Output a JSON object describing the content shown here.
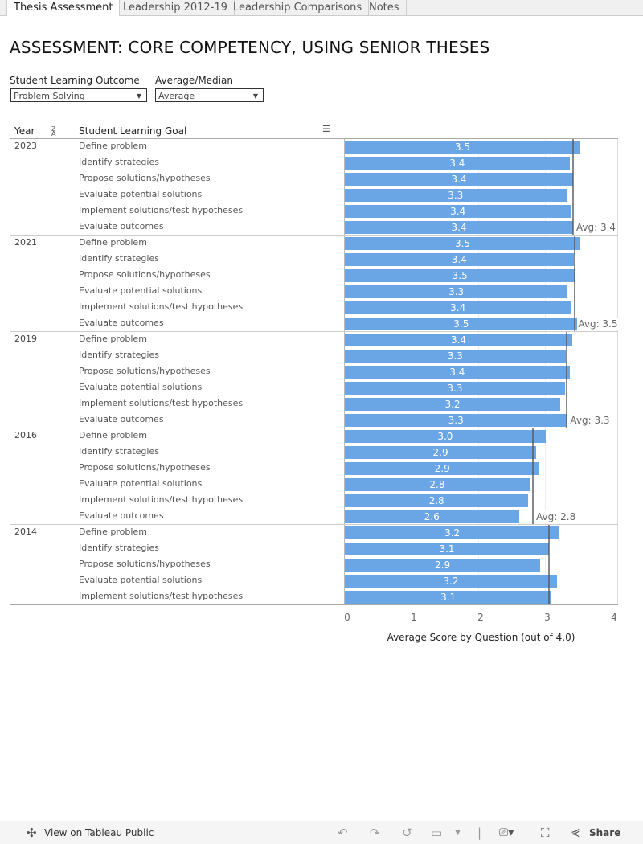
{
  "tabs": [
    {
      "label": "Thesis Assessment",
      "active": true
    },
    {
      "label": "Leadership 2012-19"
    },
    {
      "label": "Leadership Comparisons"
    },
    {
      "label": "Notes"
    }
  ],
  "title": "ASSESSMENT: CORE COMPETENCY, USING SENIOR THESES",
  "filters": [
    {
      "label": "Student Learning Outcome",
      "value": "Problem Solving"
    },
    {
      "label": "Average/Median",
      "value": "Average"
    }
  ],
  "headers": {
    "year": "Year",
    "goal": "Student Learning Goal"
  },
  "chart_data": {
    "type": "bar",
    "orientation": "horizontal",
    "xlabel": "Average Score by Question (out of 4.0)",
    "xlim": [
      0,
      4
    ],
    "xticks": [
      "0",
      "1",
      "2",
      "3",
      "4"
    ],
    "bar_color": "#6aa5e5",
    "grid": true,
    "groups": [
      {
        "year": "2023",
        "avg": 3.42,
        "avg_label": "Avg: 3.4",
        "rows": [
          {
            "goal": "Define problem",
            "value": 3.53,
            "label": "3.5"
          },
          {
            "goal": "Identify strategies",
            "value": 3.37,
            "label": "3.4"
          },
          {
            "goal": "Propose solutions/hypotheses",
            "value": 3.42,
            "label": "3.4"
          },
          {
            "goal": "Evaluate potential solutions",
            "value": 3.32,
            "label": "3.3"
          },
          {
            "goal": "Implement solutions/test hypotheses",
            "value": 3.39,
            "label": "3.4"
          },
          {
            "goal": "Evaluate outcomes",
            "value": 3.42,
            "label": "3.4"
          }
        ]
      },
      {
        "year": "2021",
        "avg": 3.45,
        "avg_label": "Avg: 3.5",
        "rows": [
          {
            "goal": "Define problem",
            "value": 3.53,
            "label": "3.5"
          },
          {
            "goal": "Identify strategies",
            "value": 3.43,
            "label": "3.4"
          },
          {
            "goal": "Propose solutions/hypotheses",
            "value": 3.45,
            "label": "3.5"
          },
          {
            "goal": "Evaluate potential solutions",
            "value": 3.34,
            "label": "3.3"
          },
          {
            "goal": "Implement solutions/test hypotheses",
            "value": 3.39,
            "label": "3.4"
          },
          {
            "goal": "Evaluate outcomes",
            "value": 3.49,
            "label": "3.5"
          }
        ]
      },
      {
        "year": "2019",
        "avg": 3.33,
        "avg_label": "Avg: 3.3",
        "rows": [
          {
            "goal": "Define problem",
            "value": 3.41,
            "label": "3.4"
          },
          {
            "goal": "Identify strategies",
            "value": 3.31,
            "label": "3.3"
          },
          {
            "goal": "Propose solutions/hypotheses",
            "value": 3.37,
            "label": "3.4"
          },
          {
            "goal": "Evaluate potential solutions",
            "value": 3.3,
            "label": "3.3"
          },
          {
            "goal": "Implement solutions/test hypotheses",
            "value": 3.23,
            "label": "3.2"
          },
          {
            "goal": "Evaluate outcomes",
            "value": 3.33,
            "label": "3.3"
          }
        ]
      },
      {
        "year": "2016",
        "avg": 2.82,
        "avg_label": "Avg: 2.8",
        "rows": [
          {
            "goal": "Define problem",
            "value": 3.01,
            "label": "3.0"
          },
          {
            "goal": "Identify strategies",
            "value": 2.87,
            "label": "2.9"
          },
          {
            "goal": "Propose solutions/hypotheses",
            "value": 2.92,
            "label": "2.9"
          },
          {
            "goal": "Evaluate potential solutions",
            "value": 2.77,
            "label": "2.8"
          },
          {
            "goal": "Implement solutions/test hypotheses",
            "value": 2.75,
            "label": "2.8"
          },
          {
            "goal": "Evaluate outcomes",
            "value": 2.61,
            "label": "2.6"
          }
        ]
      },
      {
        "year": "2014",
        "avg": 3.06,
        "rows": [
          {
            "goal": "Define problem",
            "value": 3.22,
            "label": "3.2"
          },
          {
            "goal": "Identify strategies",
            "value": 3.06,
            "label": "3.1"
          },
          {
            "goal": "Propose solutions/hypotheses",
            "value": 2.93,
            "label": "2.9"
          },
          {
            "goal": "Evaluate potential solutions",
            "value": 3.18,
            "label": "3.2"
          },
          {
            "goal": "Implement solutions/test hypotheses",
            "value": 3.1,
            "label": "3.1"
          }
        ]
      }
    ]
  },
  "footer": {
    "view_label": "View on Tableau Public",
    "share_label": "Share"
  }
}
